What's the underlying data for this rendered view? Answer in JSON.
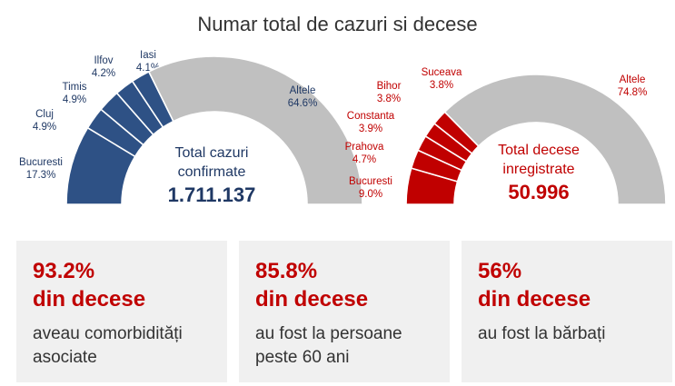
{
  "title": "Numar total de cazuri si decese",
  "chart_data": [
    {
      "type": "pie",
      "variant": "half-donut",
      "name": "cases",
      "center_label": "Total cazuri confirmate",
      "center_label_lines": [
        "Total cazuri",
        "confirmate"
      ],
      "total": "1.711.137",
      "slices": [
        {
          "label": "Bucuresti",
          "value": 17.3,
          "value_label": "17.3%"
        },
        {
          "label": "Cluj",
          "value": 4.9,
          "value_label": "4.9%"
        },
        {
          "label": "Timis",
          "value": 4.9,
          "value_label": "4.9%"
        },
        {
          "label": "Ilfov",
          "value": 4.2,
          "value_label": "4.2%"
        },
        {
          "label": "Iasi",
          "value": 4.1,
          "value_label": "4.1%"
        },
        {
          "label": "Altele",
          "value": 64.6,
          "value_label": "64.6%"
        }
      ]
    },
    {
      "type": "pie",
      "variant": "half-donut",
      "name": "deaths",
      "center_label": "Total decese inregistrate",
      "center_label_lines": [
        "Total decese",
        "inregistrate"
      ],
      "total": "50.996",
      "slices": [
        {
          "label": "Bucuresti",
          "value": 9.0,
          "value_label": "9.0%"
        },
        {
          "label": "Prahova",
          "value": 4.7,
          "value_label": "4.7%"
        },
        {
          "label": "Constanta",
          "value": 3.9,
          "value_label": "3.9%"
        },
        {
          "label": "Bihor",
          "value": 3.8,
          "value_label": "3.8%"
        },
        {
          "label": "Suceava",
          "value": 3.8,
          "value_label": "3.8%"
        },
        {
          "label": "Altele",
          "value": 74.8,
          "value_label": "74.8%"
        }
      ]
    }
  ],
  "colors": {
    "cases": "#2e5185",
    "deaths": "#c00000",
    "other": "#c0c0c0"
  },
  "cards": [
    {
      "pct": "93.2%",
      "line2": "din decese",
      "desc": "aveau comorbidități asociate"
    },
    {
      "pct": "85.8%",
      "line2": "din decese",
      "desc": "au fost la persoane peste 60 ani"
    },
    {
      "pct": "56%",
      "line2": "din decese",
      "desc": "au fost la bărbați"
    }
  ]
}
